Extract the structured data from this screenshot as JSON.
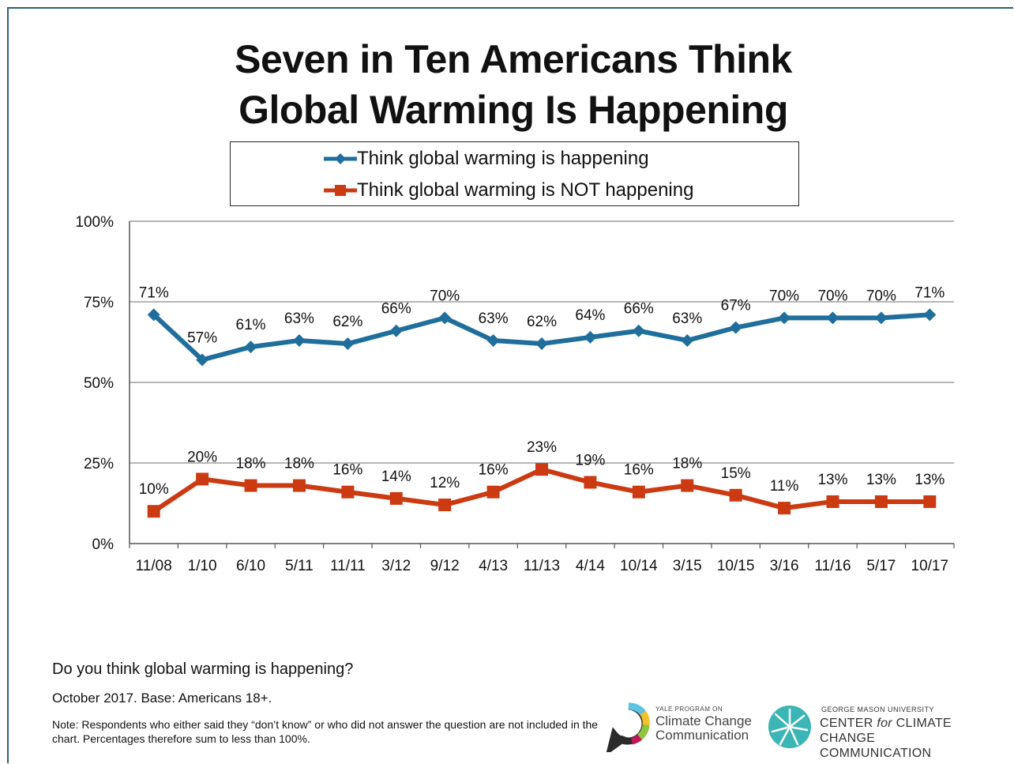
{
  "title_line1": "Seven in Ten Americans Think",
  "title_line2": "Global Warming Is Happening",
  "footer": {
    "question": "Do you think global warming is happening?",
    "base": "October 2017.  Base: Americans 18+.",
    "note": "Note: Respondents who either said they “don’t know” or who did not answer the question are not included in the chart. Percentages therefore sum to less than 100%."
  },
  "logos": {
    "yale_small": "YALE PROGRAM ON",
    "yale_line1": "Climate Change",
    "yale_line2": "Communication",
    "gmu_small": "GEORGE MASON UNIVERSITY",
    "gmu_line1_a": "CENTER ",
    "gmu_line1_b": "for",
    "gmu_line1_c": " CLIMATE CHANGE",
    "gmu_line2": "COMMUNICATION"
  },
  "chart_data": {
    "type": "line",
    "categories": [
      "11/08",
      "1/10",
      "6/10",
      "5/11",
      "11/11",
      "3/12",
      "9/12",
      "4/13",
      "11/13",
      "4/14",
      "10/14",
      "3/15",
      "10/15",
      "3/16",
      "11/16",
      "5/17",
      "10/17"
    ],
    "ylim": [
      0,
      100
    ],
    "yticks": [
      0,
      25,
      50,
      75,
      100
    ],
    "ytick_labels": [
      "0%",
      "25%",
      "50%",
      "75%",
      "100%"
    ],
    "grid": true,
    "legend_position": "top",
    "series": [
      {
        "name": "Think global warming is happening",
        "color": "#1f6e9c",
        "marker": "diamond",
        "values": [
          71,
          57,
          61,
          63,
          62,
          66,
          70,
          63,
          62,
          64,
          66,
          63,
          67,
          70,
          70,
          70,
          71
        ],
        "labels": [
          "71%",
          "57%",
          "61%",
          "63%",
          "62%",
          "66%",
          "70%",
          "63%",
          "62%",
          "64%",
          "66%",
          "63%",
          "67%",
          "70%",
          "70%",
          "70%",
          "71%"
        ]
      },
      {
        "name": "Think global warming is NOT happening",
        "color": "#cc3a12",
        "marker": "square",
        "values": [
          10,
          20,
          18,
          18,
          16,
          14,
          12,
          16,
          23,
          19,
          16,
          18,
          15,
          11,
          13,
          13,
          13
        ],
        "labels": [
          "10%",
          "20%",
          "18%",
          "18%",
          "16%",
          "14%",
          "12%",
          "16%",
          "23%",
          "19%",
          "16%",
          "18%",
          "15%",
          "11%",
          "13%",
          "13%",
          "13%"
        ]
      }
    ]
  }
}
